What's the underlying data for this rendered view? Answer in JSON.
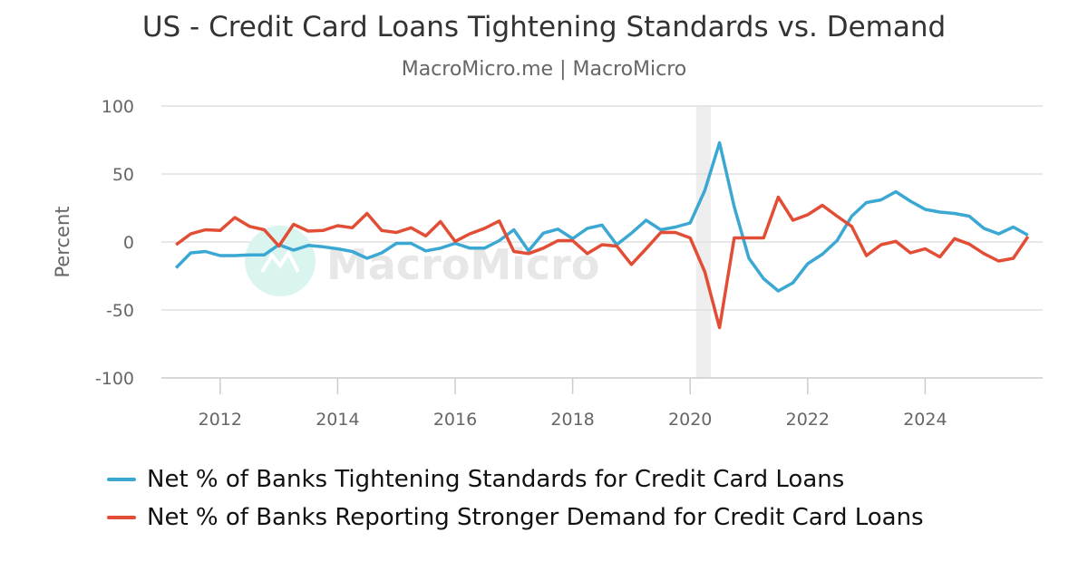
{
  "title": "US - Credit Card Loans Tightening Standards vs. Demand",
  "subtitle": "MacroMicro.me | MacroMicro",
  "watermark": "MacroMicro",
  "chart_data": {
    "type": "line",
    "ylabel": "Percent",
    "xlabel": "",
    "ylim": [
      -100,
      100
    ],
    "yticks": [
      100,
      50,
      0,
      -50,
      -100
    ],
    "xlim": [
      2011.0,
      2026.0
    ],
    "xticks": [
      "2012",
      "2014",
      "2016",
      "2018",
      "2020",
      "2022",
      "2024"
    ],
    "grid": true,
    "legend_position": "bottom",
    "shaded_period": {
      "start": 2020.1,
      "end": 2020.35
    },
    "colors": {
      "tightening": "#3aa8d2",
      "demand": "#e24e35",
      "shade": "#eeeeee",
      "grid": "#e0e0e0"
    },
    "x": [
      2011.25,
      2011.5,
      2011.75,
      2012.0,
      2012.25,
      2012.5,
      2012.75,
      2013.0,
      2013.25,
      2013.5,
      2013.75,
      2014.0,
      2014.25,
      2014.5,
      2014.75,
      2015.0,
      2015.25,
      2015.5,
      2015.75,
      2016.0,
      2016.25,
      2016.5,
      2016.75,
      2017.0,
      2017.25,
      2017.5,
      2017.75,
      2018.0,
      2018.25,
      2018.5,
      2018.75,
      2019.0,
      2019.25,
      2019.5,
      2019.75,
      2020.0,
      2020.25,
      2020.5,
      2020.75,
      2021.0,
      2021.25,
      2021.5,
      2021.75,
      2022.0,
      2022.25,
      2022.5,
      2022.75,
      2023.0,
      2023.25,
      2023.5,
      2023.75,
      2024.0,
      2024.25,
      2024.5,
      2024.75,
      2025.0,
      2025.25,
      2025.5,
      2025.75
    ],
    "series": [
      {
        "name": "Net % of Banks Tightening Standards for Credit Card Loans",
        "key": "tightening",
        "values": [
          -19,
          -8,
          -7,
          -10,
          -10,
          -9.5,
          -9.5,
          -2,
          -6,
          -2.5,
          -3.5,
          -5,
          -7,
          -12,
          -8,
          -1,
          -1,
          -6.5,
          -4.5,
          -1,
          -4.5,
          -4.5,
          1,
          9,
          -6.5,
          6.5,
          9.5,
          2.5,
          10,
          12.5,
          -2,
          6.5,
          16,
          9,
          11,
          14,
          38,
          73,
          26,
          -12,
          -27,
          -36,
          -30,
          -16,
          -9,
          1,
          19,
          29,
          31,
          37,
          30,
          24,
          22,
          21,
          19,
          10,
          6,
          11,
          5
        ]
      },
      {
        "name": "Net % of Banks Reporting Stronger Demand for Credit Card Loans",
        "key": "demand",
        "values": [
          -2,
          6,
          9,
          8.5,
          18,
          11.5,
          9,
          -3,
          13,
          8,
          8.5,
          12,
          10.5,
          21,
          8.5,
          7,
          10.5,
          4.5,
          15,
          0.5,
          6,
          10,
          15.5,
          -7,
          -8.5,
          -4.5,
          1,
          1,
          -8.5,
          -2,
          -3,
          -16.5,
          -5,
          7,
          7,
          3,
          -22,
          -63,
          3,
          3,
          3,
          33,
          16,
          20,
          27,
          19,
          11.5,
          -10,
          -2,
          0.5,
          -8,
          -5,
          -11,
          2.5,
          -1.5,
          -8.5,
          -14,
          -12,
          4
        ]
      }
    ]
  }
}
